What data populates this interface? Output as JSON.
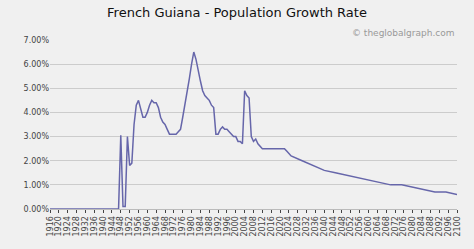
{
  "chart_data": {
    "type": "line",
    "title": "French Guiana - Population Growth Rate",
    "annotations": [
      "© theglobalgraph.com"
    ],
    "color": "#6666aa",
    "grid": "y",
    "x": [
      1916,
      1917,
      1918,
      1919,
      1920,
      1921,
      1922,
      1923,
      1924,
      1925,
      1926,
      1927,
      1928,
      1929,
      1930,
      1931,
      1932,
      1933,
      1934,
      1935,
      1936,
      1937,
      1938,
      1939,
      1940,
      1941,
      1942,
      1943,
      1944,
      1945,
      1946,
      1947,
      1948,
      1949,
      1950,
      1951,
      1952,
      1953,
      1954,
      1955,
      1956,
      1957,
      1958,
      1959,
      1960,
      1961,
      1962,
      1963,
      1964,
      1965,
      1966,
      1967,
      1968,
      1969,
      1970,
      1971,
      1972,
      1973,
      1974,
      1975,
      1976,
      1977,
      1978,
      1979,
      1980,
      1981,
      1982,
      1983,
      1984,
      1985,
      1986,
      1987,
      1988,
      1989,
      1990,
      1991,
      1992,
      1993,
      1994,
      1995,
      1996,
      1997,
      1998,
      1999,
      2000,
      2001,
      2002,
      2003,
      2004,
      2005,
      2006,
      2007,
      2008,
      2009,
      2010,
      2011,
      2012,
      2013,
      2014,
      2015,
      2016,
      2017,
      2018,
      2019,
      2020,
      2021,
      2022,
      2023,
      2024,
      2025,
      2030,
      2035,
      2040,
      2045,
      2050,
      2055,
      2060,
      2065,
      2070,
      2075,
      2080,
      2085,
      2090,
      2095,
      2100
    ],
    "values": [
      0.0,
      0.0,
      0.0,
      0.0,
      0.0,
      0.0,
      0.0,
      0.0,
      0.0,
      0.0,
      0.0,
      0.0,
      0.0,
      0.0,
      0.0,
      0.0,
      0.0,
      0.0,
      0.0,
      0.0,
      0.0,
      0.0,
      0.0,
      0.0,
      0.0,
      0.0,
      0.0,
      0.0,
      0.0,
      0.0,
      0.0,
      0.0,
      0.0305,
      0.001,
      0.001,
      0.03,
      0.018,
      0.019,
      0.035,
      0.043,
      0.045,
      0.042,
      0.038,
      0.038,
      0.04,
      0.043,
      0.045,
      0.044,
      0.044,
      0.042,
      0.038,
      0.036,
      0.035,
      0.033,
      0.031,
      0.031,
      0.031,
      0.031,
      0.032,
      0.033,
      0.038,
      0.043,
      0.048,
      0.054,
      0.06,
      0.065,
      0.062,
      0.057,
      0.053,
      0.049,
      0.047,
      0.046,
      0.045,
      0.043,
      0.042,
      0.031,
      0.031,
      0.033,
      0.034,
      0.033,
      0.033,
      0.032,
      0.031,
      0.03,
      0.03,
      0.028,
      0.028,
      0.027,
      0.049,
      0.047,
      0.046,
      0.03,
      0.028,
      0.029,
      0.027,
      0.026,
      0.025,
      0.025,
      0.025,
      0.025,
      0.025,
      0.025,
      0.025,
      0.025,
      0.025,
      0.025,
      0.025,
      0.024,
      0.023,
      0.022,
      0.02,
      0.018,
      0.016,
      0.015,
      0.014,
      0.013,
      0.012,
      0.011,
      0.01,
      0.01,
      0.009,
      0.008,
      0.007,
      0.007,
      0.006
    ],
    "xlim": [
      1916,
      2100
    ],
    "xticks": [
      1916,
      1920,
      1924,
      1928,
      1932,
      1936,
      1940,
      1944,
      1948,
      1952,
      1956,
      1960,
      1964,
      1968,
      1972,
      1976,
      1980,
      1984,
      1988,
      1992,
      1996,
      2000,
      2004,
      2008,
      2012,
      2016,
      2020,
      2024,
      2028,
      2032,
      2036,
      2040,
      2044,
      2048,
      2052,
      2056,
      2060,
      2064,
      2068,
      2072,
      2076,
      2080,
      2084,
      2088,
      2092,
      2096,
      2100
    ],
    "ylim": [
      0.0,
      0.07
    ],
    "yticks": [
      {
        "value": 0.0,
        "label": "0.00%"
      },
      {
        "value": 0.01,
        "label": "1.00%"
      },
      {
        "value": 0.02,
        "label": "2.00%"
      },
      {
        "value": 0.03,
        "label": "3.00%"
      },
      {
        "value": 0.04,
        "label": "4.00%"
      },
      {
        "value": 0.05,
        "label": "5.00%"
      },
      {
        "value": 0.06,
        "label": "6.00%"
      },
      {
        "value": 0.07,
        "label": "7.00%"
      }
    ]
  }
}
